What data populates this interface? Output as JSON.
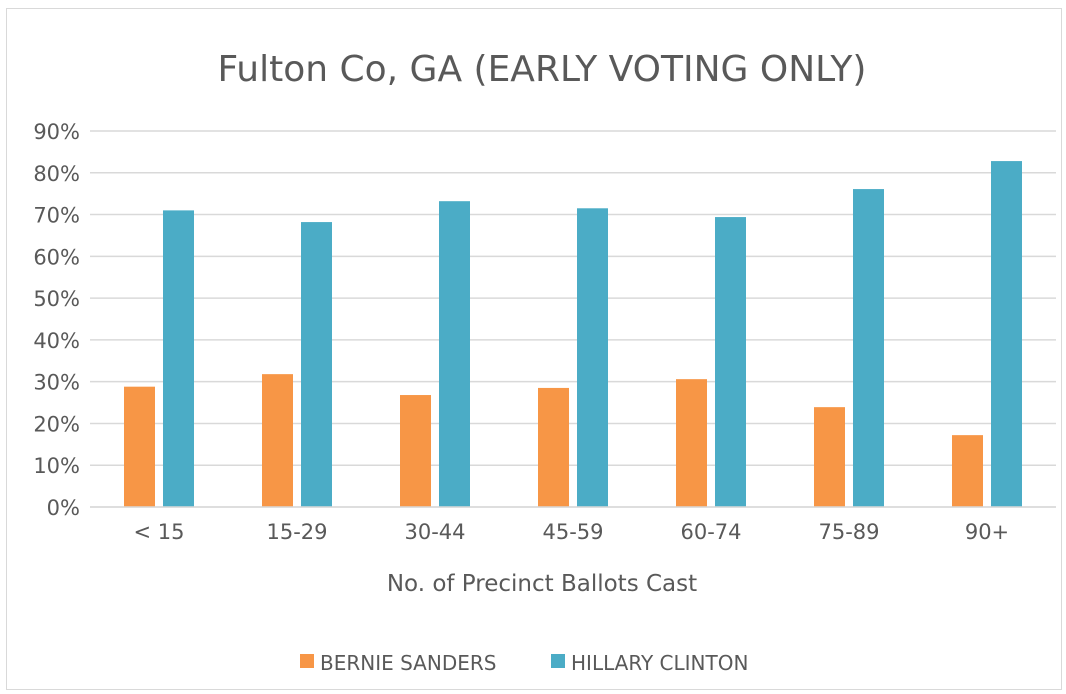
{
  "chart_data": {
    "type": "bar",
    "title": "Fulton Co, GA (EARLY VOTING ONLY)",
    "xlabel": "No. of Precinct Ballots Cast",
    "ylabel": "",
    "categories": [
      "< 15",
      "15-29",
      "30-44",
      "45-59",
      "60-74",
      "75-89",
      "90+"
    ],
    "series": [
      {
        "name": "BERNIE SANDERS",
        "color": "#f79646",
        "values": [
          28.8,
          31.8,
          26.8,
          28.5,
          30.6,
          23.9,
          17.2
        ]
      },
      {
        "name": "HILLARY CLINTON",
        "color": "#4bacc6",
        "values": [
          71.0,
          68.2,
          73.2,
          71.5,
          69.4,
          76.1,
          82.8
        ]
      }
    ],
    "ylim": [
      0,
      90
    ],
    "yticks": [
      0,
      10,
      20,
      30,
      40,
      50,
      60,
      70,
      80,
      90
    ],
    "ytick_labels": [
      "0%",
      "10%",
      "20%",
      "30%",
      "40%",
      "50%",
      "60%",
      "70%",
      "80%",
      "90%"
    ],
    "grid": true,
    "legend_position": "bottom"
  }
}
